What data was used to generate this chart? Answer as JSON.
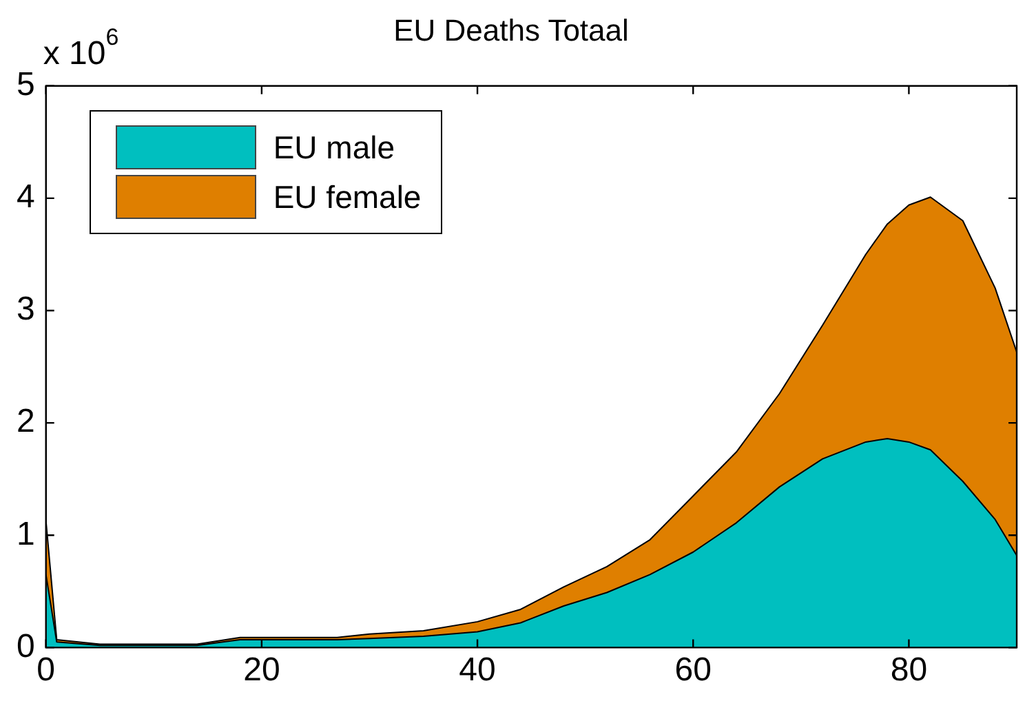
{
  "chart_data": {
    "type": "area",
    "title": "EU Deaths Totaal",
    "annotations": [
      "x 10$^{6}$"
    ],
    "stacked": true,
    "x": [
      0,
      1,
      5,
      14,
      18,
      27,
      30,
      35,
      40,
      44,
      48,
      52,
      56,
      60,
      64,
      68,
      72,
      76,
      78,
      80,
      82,
      85,
      88,
      90
    ],
    "series": [
      {
        "name": "EU male",
        "color": "#00bfbf",
        "values": [
          0.65,
          0.05,
          0.02,
          0.02,
          0.07,
          0.07,
          0.08,
          0.1,
          0.14,
          0.22,
          0.37,
          0.49,
          0.65,
          0.85,
          1.11,
          1.43,
          1.68,
          1.83,
          1.86,
          1.83,
          1.76,
          1.48,
          1.14,
          0.82
        ]
      },
      {
        "name": "EU female",
        "color": "#df7f00",
        "values": [
          0.48,
          0.02,
          0.01,
          0.01,
          0.02,
          0.02,
          0.04,
          0.05,
          0.09,
          0.12,
          0.17,
          0.23,
          0.31,
          0.5,
          0.63,
          0.83,
          1.19,
          1.67,
          1.91,
          2.11,
          2.25,
          2.32,
          2.06,
          1.81
        ]
      }
    ],
    "xlim": [
      0,
      90
    ],
    "xticks": [
      0,
      20,
      40,
      60,
      80
    ],
    "ylim": [
      0,
      5
    ],
    "yticks": [
      0,
      1,
      2,
      3,
      4,
      5
    ],
    "grid": false,
    "legend": "top left"
  }
}
